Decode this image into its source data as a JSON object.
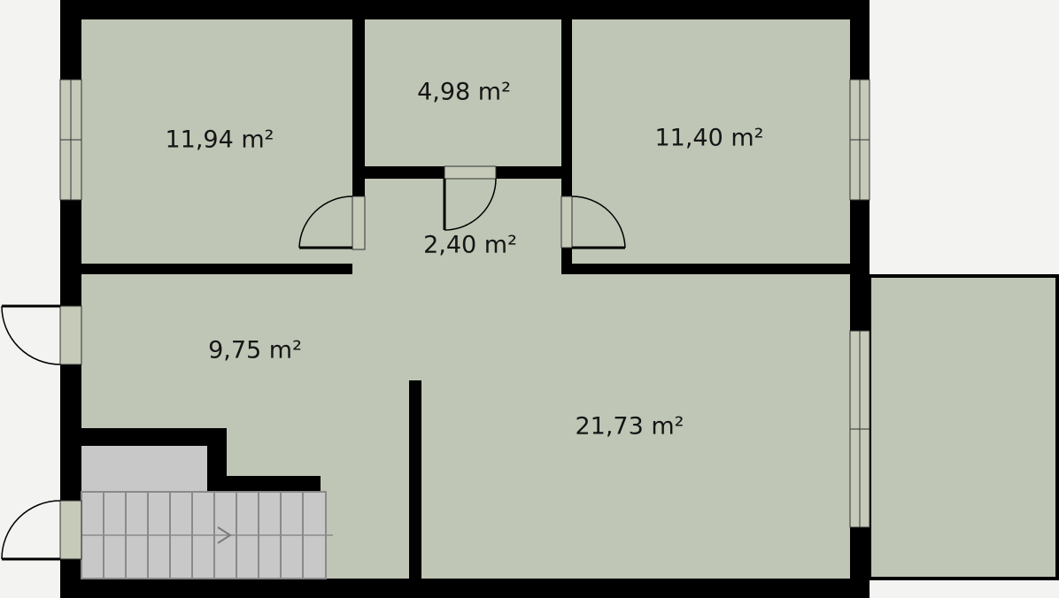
{
  "colors": {
    "background": "#f3f3f2",
    "room_fill": "#bfc6b5",
    "wall": "#000000",
    "stair_fill": "#c8c8c8",
    "stair_line": "#8a8a8a",
    "door_window_fill": "#c5cab9"
  },
  "rooms": [
    {
      "id": "room-top-left",
      "area": "11,94 m²"
    },
    {
      "id": "room-top-middle",
      "area": "4,98 m²"
    },
    {
      "id": "room-top-right",
      "area": "11,40 m²"
    },
    {
      "id": "hall",
      "area": "2,40 m²"
    },
    {
      "id": "room-left",
      "area": "9,75 m²"
    },
    {
      "id": "living",
      "area": "21,73 m²"
    }
  ],
  "icons": {
    "stair_direction": "arrow-right-icon"
  }
}
